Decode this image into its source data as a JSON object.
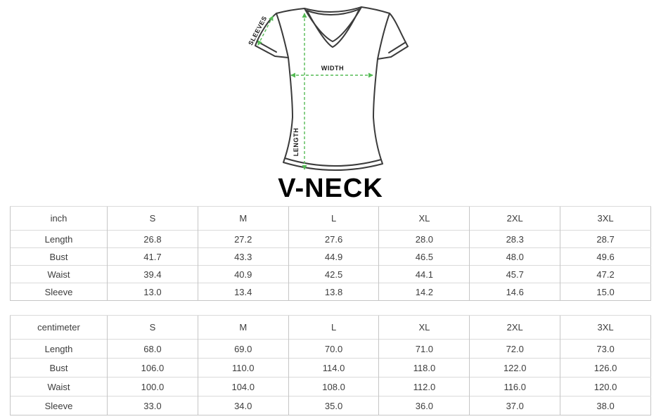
{
  "diagram": {
    "title": "V-NECK",
    "labels": {
      "sleeves": "SLEEVES",
      "width": "WIDTH",
      "length": "LENGTH"
    },
    "colors": {
      "arrow_green": "#55bb55",
      "shirt_outline": "#3b3b3b",
      "table_border": "#c6c6c6",
      "table_row_divider": "#dadada",
      "table_text": "#3d3d3d"
    }
  },
  "tables": [
    {
      "unit": "inch",
      "sizes": [
        "S",
        "M",
        "L",
        "XL",
        "2XL",
        "3XL"
      ],
      "rows": [
        {
          "label": "Length",
          "values": [
            "26.8",
            "27.2",
            "27.6",
            "28.0",
            "28.3",
            "28.7"
          ]
        },
        {
          "label": "Bust",
          "values": [
            "41.7",
            "43.3",
            "44.9",
            "46.5",
            "48.0",
            "49.6"
          ]
        },
        {
          "label": "Waist",
          "values": [
            "39.4",
            "40.9",
            "42.5",
            "44.1",
            "45.7",
            "47.2"
          ]
        },
        {
          "label": "Sleeve",
          "values": [
            "13.0",
            "13.4",
            "13.8",
            "14.2",
            "14.6",
            "15.0"
          ]
        }
      ]
    },
    {
      "unit": "centimeter",
      "sizes": [
        "S",
        "M",
        "L",
        "XL",
        "2XL",
        "3XL"
      ],
      "rows": [
        {
          "label": "Length",
          "values": [
            "68.0",
            "69.0",
            "70.0",
            "71.0",
            "72.0",
            "73.0"
          ]
        },
        {
          "label": "Bust",
          "values": [
            "106.0",
            "110.0",
            "114.0",
            "118.0",
            "122.0",
            "126.0"
          ]
        },
        {
          "label": "Waist",
          "values": [
            "100.0",
            "104.0",
            "108.0",
            "112.0",
            "116.0",
            "120.0"
          ]
        },
        {
          "label": "Sleeve",
          "values": [
            "33.0",
            "34.0",
            "35.0",
            "36.0",
            "37.0",
            "38.0"
          ]
        }
      ]
    }
  ]
}
